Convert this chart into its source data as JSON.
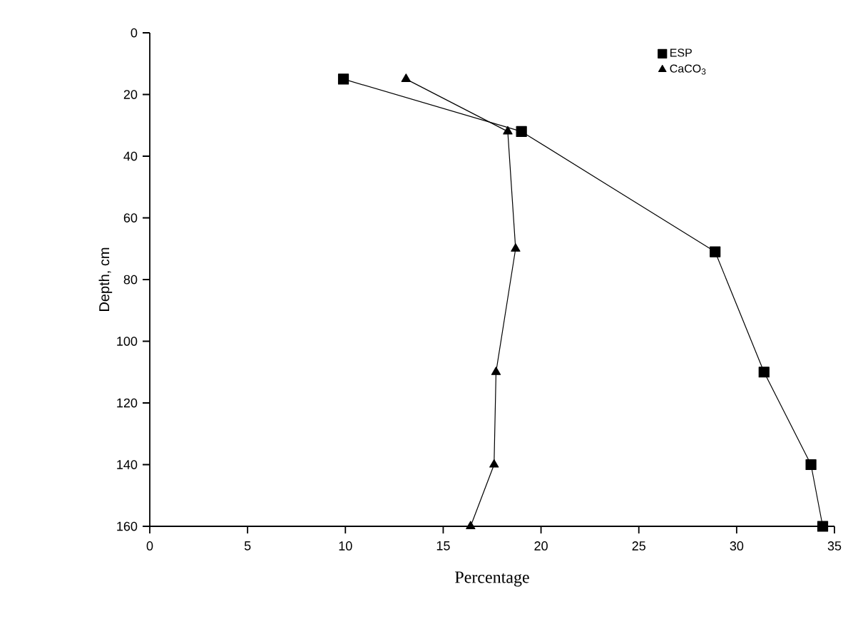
{
  "chart_data": {
    "type": "line",
    "xlabel": "Percentage",
    "ylabel": "Depth, cm",
    "xlim": [
      0,
      35
    ],
    "xticks": [
      0,
      5,
      10,
      15,
      20,
      25,
      30,
      35
    ],
    "ylim": [
      160,
      0
    ],
    "yticks": [
      0,
      20,
      40,
      60,
      80,
      100,
      120,
      140,
      160
    ],
    "legend": "top right",
    "grid": false,
    "series": [
      {
        "name": "ESP",
        "color": "#000000",
        "marker": "square",
        "x": [
          9.9,
          19.0,
          28.9,
          31.4,
          33.8,
          34.4
        ],
        "values": [
          15,
          32,
          71,
          110,
          140,
          160
        ]
      },
      {
        "name": "CaCO$_{3}$",
        "color": "#000000",
        "marker": "triangle",
        "x": [
          13.1,
          18.3,
          18.7,
          17.7,
          17.6,
          16.4
        ],
        "values": [
          15,
          32,
          70,
          110,
          140,
          160
        ]
      }
    ]
  }
}
